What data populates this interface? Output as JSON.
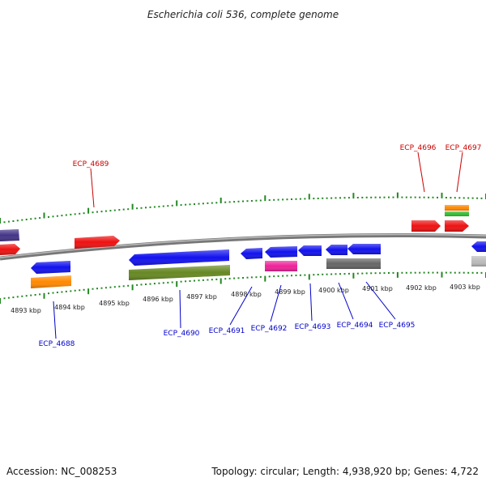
{
  "title": "Escherichia coli 536, complete genome",
  "accession": "Accession: NC_008253",
  "summary": "Topology: circular; Length: 4,938,920 bp; Genes: 4,722",
  "colors": {
    "red": "#ee1111",
    "blue": "#1111ee",
    "orange": "#ff8800",
    "olive": "#668822",
    "pink": "#ee2299",
    "gray": "#666666",
    "lightgray": "#bbbbbb",
    "purple": "#443388",
    "green": "#33bb33",
    "tick": "#228822",
    "backbone": "#888888",
    "label_top": "#cc0000",
    "label_bottom": "#0000cc"
  },
  "kbp_labels": [
    "4893 kbp",
    "4894 kbp",
    "4895 kbp",
    "4896 kbp",
    "4897 kbp",
    "4898 kbp",
    "4899 kbp",
    "4900 kbp",
    "4901 kbp",
    "4902 kbp",
    "4903 kbp"
  ],
  "top_labels": [
    "ECP_4689",
    "ECP_4696",
    "ECP_4697"
  ],
  "bottom_labels": [
    "ECP_4688",
    "ECP_4690",
    "ECP_4691",
    "ECP_4692",
    "ECP_4693",
    "ECP_4694",
    "ECP_4695"
  ]
}
